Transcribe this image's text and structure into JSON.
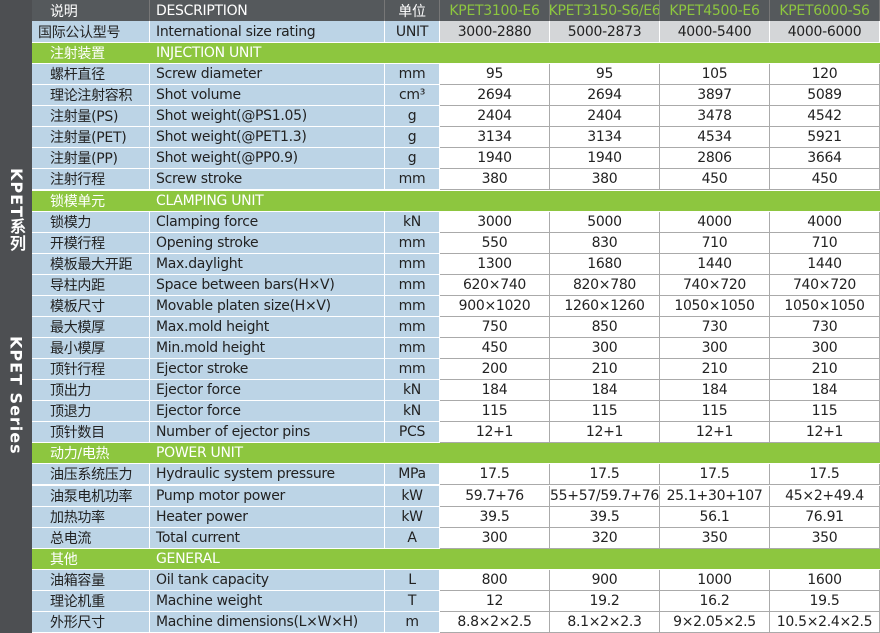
{
  "side_cn": "KPET系列",
  "side_en": "KPET Series",
  "header": {
    "desc_cn": "说明",
    "desc_en": "DESCRIPTION",
    "unit_cn": "单位",
    "unit_en": "UNIT",
    "size_cn": "国际公认型号",
    "size_en": "International size rating",
    "models": [
      "KPET3100-E6",
      "KPET3150-S6/E6",
      "KPET4500-E6",
      "KPET6000-S6"
    ],
    "sizes": [
      "3000-2880",
      "5000-2873",
      "4000-5400",
      "4000-6000"
    ]
  },
  "sections": [
    {
      "title_cn": "注射装置",
      "title_en": "INJECTION UNIT",
      "rows": [
        [
          "螺杆直径",
          "Screw diameter",
          "mm",
          "95",
          "95",
          "105",
          "120"
        ],
        [
          "理论注射容积",
          "Shot volume",
          "cm³",
          "2694",
          "2694",
          "3897",
          "5089"
        ],
        [
          "注射量(PS)",
          "Shot weight(@PS1.05)",
          "g",
          "2404",
          "2404",
          "3478",
          "4542"
        ],
        [
          "注射量(PET)",
          "Shot weight(@PET1.3)",
          "g",
          "3134",
          "3134",
          "4534",
          "5921"
        ],
        [
          "注射量(PP)",
          "Shot weight(@PP0.9)",
          "g",
          "1940",
          "1940",
          "2806",
          "3664"
        ],
        [
          "注射行程",
          "Screw stroke",
          "mm",
          "380",
          "380",
          "450",
          "450"
        ]
      ]
    },
    {
      "title_cn": "锁模单元",
      "title_en": "CLAMPING UNIT",
      "rows": [
        [
          "锁模力",
          "Clamping force",
          "kN",
          "3000",
          "5000",
          "4000",
          "4000"
        ],
        [
          "开模行程",
          "Opening stroke",
          "mm",
          "550",
          "830",
          "710",
          "710"
        ],
        [
          "模板最大开距",
          "Max.daylight",
          "mm",
          "1300",
          "1680",
          "1440",
          "1440"
        ],
        [
          "导柱内距",
          "Space between bars(H×V)",
          "mm",
          "620×740",
          "820×780",
          "740×720",
          "740×720"
        ],
        [
          "模板尺寸",
          "Movable platen size(H×V)",
          "mm",
          "900×1020",
          "1260×1260",
          "1050×1050",
          "1050×1050"
        ],
        [
          "最大模厚",
          "Max.mold height",
          "mm",
          "750",
          "850",
          "730",
          "730"
        ],
        [
          "最小模厚",
          "Min.mold height",
          "mm",
          "450",
          "300",
          "300",
          "300"
        ],
        [
          "顶针行程",
          "Ejector stroke",
          "mm",
          "200",
          "210",
          "210",
          "210"
        ],
        [
          "顶出力",
          "Ejector force",
          "kN",
          "184",
          "184",
          "184",
          "184"
        ],
        [
          "顶退力",
          "Ejector force",
          "kN",
          "115",
          "115",
          "115",
          "115"
        ],
        [
          "顶针数目",
          "Number of ejector pins",
          "PCS",
          "12+1",
          "12+1",
          "12+1",
          "12+1"
        ]
      ]
    },
    {
      "title_cn": "动力/电热",
      "title_en": "POWER UNIT",
      "rows": [
        [
          "油压系统压力",
          "Hydraulic system pressure",
          "MPa",
          "17.5",
          "17.5",
          "17.5",
          "17.5"
        ],
        [
          "油泵电机功率",
          "Pump motor power",
          "kW",
          "59.7+76",
          "55+57/59.7+76",
          "25.1+30+107",
          "45×2+49.4"
        ],
        [
          "加热功率",
          "Heater power",
          "kW",
          "39.5",
          "39.5",
          "56.1",
          "76.91"
        ],
        [
          "总电流",
          "Total current",
          "A",
          "300",
          "320",
          "350",
          "350"
        ]
      ]
    },
    {
      "title_cn": "其他",
      "title_en": "GENERAL",
      "rows": [
        [
          "油箱容量",
          "Oil tank capacity",
          "L",
          "800",
          "900",
          "1000",
          "1600"
        ],
        [
          "理论机重",
          "Machine weight",
          "T",
          "12",
          "19.2",
          "16.2",
          "19.5"
        ],
        [
          "外形尺寸",
          "Machine dimensions(L×W×H)",
          "m",
          "8.8×2×2.5",
          "8.1×2×2.3",
          "9×2.05×2.5",
          "10.5×2.4×2.5"
        ]
      ]
    }
  ]
}
